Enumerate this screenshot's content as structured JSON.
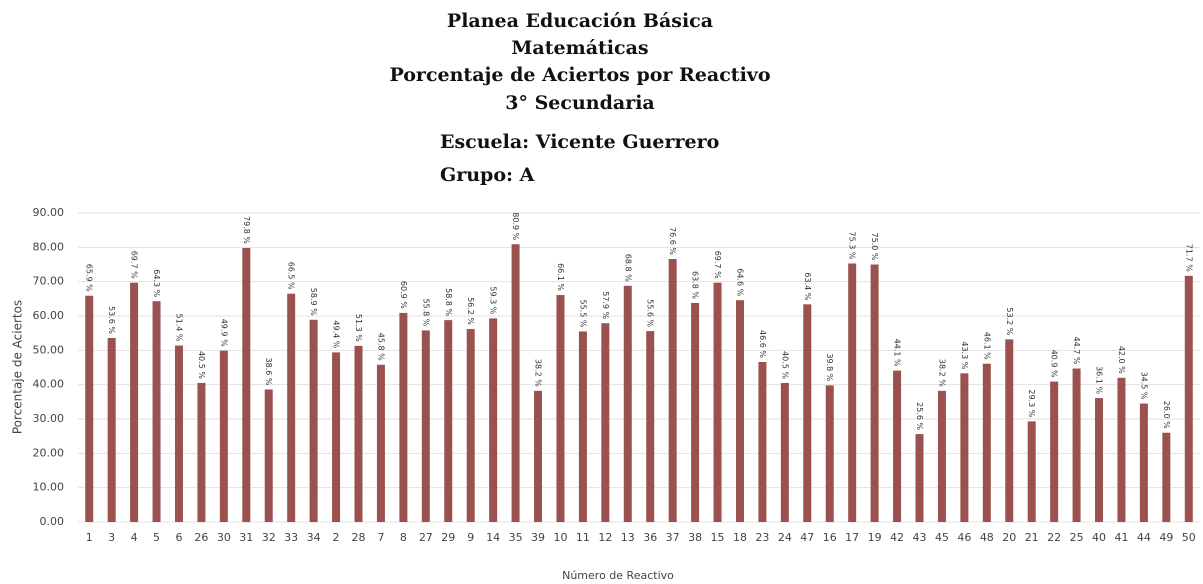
{
  "chart_data": {
    "type": "bar",
    "title_lines": [
      "Planea Educación Básica",
      "Matemáticas",
      "Porcentaje de Aciertos por Reactivo",
      "3° Secundaria",
      "Escuela: Vicente Guerrero",
      "Grupo:   A"
    ],
    "x_label": "Número de Reactivo",
    "y_label": "Porcentaje de Aciertos",
    "categories": [
      "1",
      "3",
      "4",
      "5",
      "6",
      "26",
      "30",
      "31",
      "32",
      "33",
      "34",
      "2",
      "28",
      "7",
      "8",
      "27",
      "29",
      "9",
      "14",
      "35",
      "39",
      "10",
      "11",
      "12",
      "13",
      "36",
      "37",
      "38",
      "15",
      "18",
      "23",
      "24",
      "47",
      "16",
      "17",
      "19",
      "42",
      "43",
      "45",
      "46",
      "48",
      "20",
      "21",
      "22",
      "25",
      "40",
      "41",
      "44",
      "49",
      "50"
    ],
    "values": [
      65.9,
      53.6,
      69.7,
      64.3,
      51.4,
      40.5,
      49.9,
      79.8,
      38.6,
      66.5,
      58.9,
      49.4,
      51.3,
      45.8,
      60.9,
      55.8,
      58.8,
      56.2,
      59.3,
      80.9,
      38.2,
      66.1,
      55.5,
      57.9,
      68.8,
      55.6,
      76.6,
      63.8,
      69.7,
      64.6,
      46.6,
      40.5,
      63.4,
      39.8,
      75.3,
      75.0,
      44.1,
      25.6,
      38.2,
      43.3,
      46.1,
      53.2,
      29.3,
      40.9,
      44.7,
      36.1,
      42.0,
      34.5,
      26.0,
      71.7
    ],
    "value_labels": [
      "65.9 %",
      "53.6 %",
      "69.7 %",
      "64.3 %",
      "51.4 %",
      "40.5 %",
      "49.9 %",
      "79.8 %",
      "38.6 %",
      "66.5 %",
      "58.9 %",
      "49.4 %",
      "51.3 %",
      "45.8 %",
      "60.9 %",
      "55.8 %",
      "58.8 %",
      "56.2 %",
      "59.3 %",
      "80.9 %",
      "38.2 %",
      "66.1 %",
      "55.5 %",
      "57.9 %",
      "68.8 %",
      "55.6 %",
      "76.6 %",
      "63.8 %",
      "69.7 %",
      "64.6 %",
      "46.6 %",
      "40.5 %",
      "63.4 %",
      "39.8 %",
      "75.3 %",
      "75.0 %",
      "44.1 %",
      "25.6 %",
      "38.2 %",
      "43.3 %",
      "46.1 %",
      "53.2 %",
      "29.3 %",
      "40.9 %",
      "44.7 %",
      "36.1 %",
      "42.0 %",
      "34.5 %",
      "26.0 %",
      "71.7 %"
    ],
    "color": "#9b514f",
    "ylim": [
      0,
      90
    ],
    "yticks": [
      {
        "value": 0,
        "label": "0.00"
      },
      {
        "value": 10,
        "label": "10.00"
      },
      {
        "value": 20,
        "label": "20.00"
      },
      {
        "value": 30,
        "label": "30.00"
      },
      {
        "value": 40,
        "label": "40.00"
      },
      {
        "value": 50,
        "label": "50.00"
      },
      {
        "value": 60,
        "label": "60.00"
      },
      {
        "value": 70,
        "label": "70.00"
      },
      {
        "value": 80,
        "label": "80.00"
      },
      {
        "value": 90,
        "label": "90.00"
      }
    ],
    "grid": true
  }
}
